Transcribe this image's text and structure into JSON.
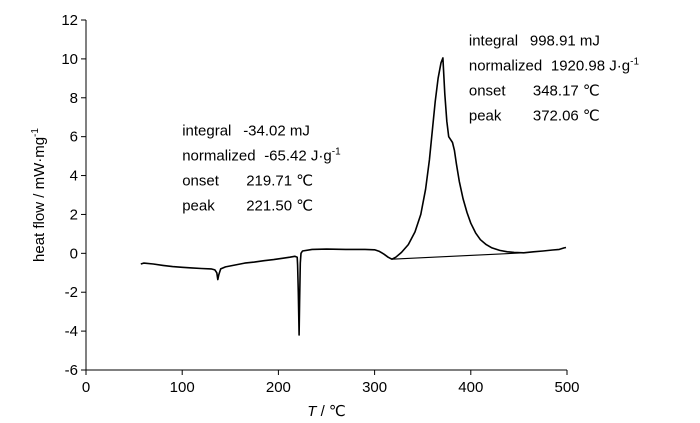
{
  "chart_data": {
    "type": "line",
    "title": "",
    "xlabel_var": "T",
    "xlabel_unit": " / ℃",
    "ylabel": "heat flow / mW·mg",
    "ylabel_sup": "-1",
    "xlim": [
      0,
      500
    ],
    "ylim": [
      -6,
      12
    ],
    "x_ticks": [
      0,
      100,
      200,
      300,
      400,
      500
    ],
    "y_ticks": [
      -6,
      -4,
      -2,
      0,
      2,
      4,
      6,
      8,
      10,
      12
    ],
    "grid": false,
    "legend": "none",
    "line_color": "#000000",
    "series": [
      {
        "values": [
          [
            57,
            -0.55
          ],
          [
            60,
            -0.5
          ],
          [
            70,
            -0.55
          ],
          [
            80,
            -0.62
          ],
          [
            90,
            -0.68
          ],
          [
            100,
            -0.72
          ],
          [
            110,
            -0.75
          ],
          [
            120,
            -0.78
          ],
          [
            130,
            -0.8
          ],
          [
            134,
            -0.85
          ],
          [
            136,
            -1.0
          ],
          [
            137,
            -1.35
          ],
          [
            138,
            -1.1
          ],
          [
            140,
            -0.8
          ],
          [
            145,
            -0.7
          ],
          [
            155,
            -0.6
          ],
          [
            165,
            -0.5
          ],
          [
            175,
            -0.45
          ],
          [
            185,
            -0.38
          ],
          [
            195,
            -0.32
          ],
          [
            205,
            -0.25
          ],
          [
            212,
            -0.2
          ],
          [
            217,
            -0.15
          ],
          [
            219.5,
            -0.2
          ],
          [
            220,
            -0.6
          ],
          [
            220.7,
            -2.0
          ],
          [
            221.5,
            -4.2
          ],
          [
            222,
            -2.5
          ],
          [
            222.8,
            -0.5
          ],
          [
            223.5,
            0.0
          ],
          [
            225,
            0.12
          ],
          [
            235,
            0.2
          ],
          [
            250,
            0.22
          ],
          [
            270,
            0.2
          ],
          [
            290,
            0.2
          ],
          [
            300,
            0.18
          ],
          [
            305,
            0.1
          ],
          [
            310,
            -0.05
          ],
          [
            314,
            -0.2
          ],
          [
            318,
            -0.3
          ],
          [
            322,
            -0.2
          ],
          [
            328,
            0.05
          ],
          [
            335,
            0.45
          ],
          [
            342,
            1.1
          ],
          [
            348,
            2.0
          ],
          [
            353,
            3.3
          ],
          [
            357,
            4.8
          ],
          [
            360,
            6.3
          ],
          [
            363,
            7.8
          ],
          [
            366,
            9.0
          ],
          [
            369,
            9.8
          ],
          [
            371,
            10.05
          ],
          [
            373,
            8.2
          ],
          [
            375,
            6.8
          ],
          [
            377,
            6.0
          ],
          [
            379,
            5.85
          ],
          [
            381,
            5.7
          ],
          [
            383,
            5.3
          ],
          [
            385,
            4.6
          ],
          [
            388,
            3.7
          ],
          [
            392,
            2.8
          ],
          [
            396,
            2.1
          ],
          [
            400,
            1.55
          ],
          [
            405,
            1.05
          ],
          [
            410,
            0.7
          ],
          [
            416,
            0.45
          ],
          [
            422,
            0.28
          ],
          [
            430,
            0.15
          ],
          [
            438,
            0.08
          ],
          [
            445,
            0.05
          ],
          [
            455,
            0.03
          ],
          [
            465,
            0.08
          ],
          [
            475,
            0.12
          ],
          [
            485,
            0.17
          ],
          [
            492,
            0.2
          ],
          [
            497,
            0.28
          ],
          [
            499,
            0.3
          ]
        ]
      },
      {
        "values": [
          [
            318,
            -0.3
          ],
          [
            455,
            0.03
          ]
        ]
      }
    ],
    "annotations": [
      {
        "anchor_x": 100,
        "anchor_y": 6.05,
        "lines": [
          {
            "label": "integral",
            "value": "-34.02 mJ"
          },
          {
            "label": "normalized",
            "value": "-65.42 J·g",
            "sup": "-1"
          },
          {
            "label": "onset",
            "value": "219.71 ℃"
          },
          {
            "label": "peak",
            "value": "221.50 ℃"
          }
        ]
      },
      {
        "anchor_x": 398,
        "anchor_y": 10.7,
        "lines": [
          {
            "label": "integral",
            "value": "998.91 mJ"
          },
          {
            "label": "normalized",
            "value": "1920.98 J·g",
            "sup": "-1"
          },
          {
            "label": "onset",
            "value": "348.17 ℃"
          },
          {
            "label": "peak",
            "value": "372.06 ℃"
          }
        ]
      }
    ]
  }
}
